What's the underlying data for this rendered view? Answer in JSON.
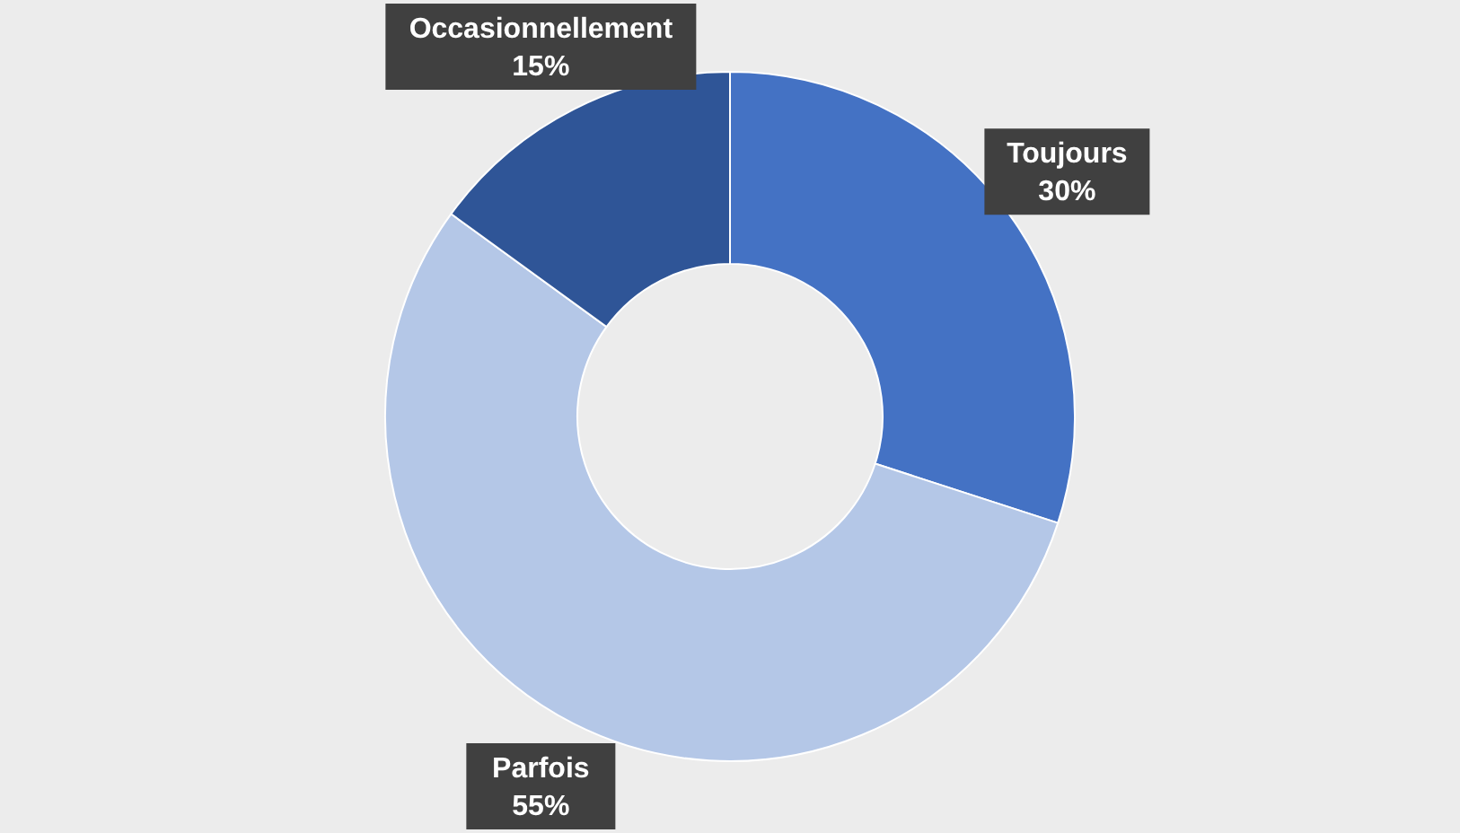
{
  "chart_data": {
    "type": "donut",
    "categories": [
      "Toujours",
      "Parfois",
      "Occasionnellement"
    ],
    "values": [
      30,
      55,
      15
    ],
    "colors": [
      "#4472c4",
      "#b4c7e7",
      "#2f5597"
    ],
    "value_labels": [
      "30%",
      "55%",
      "15%"
    ]
  }
}
